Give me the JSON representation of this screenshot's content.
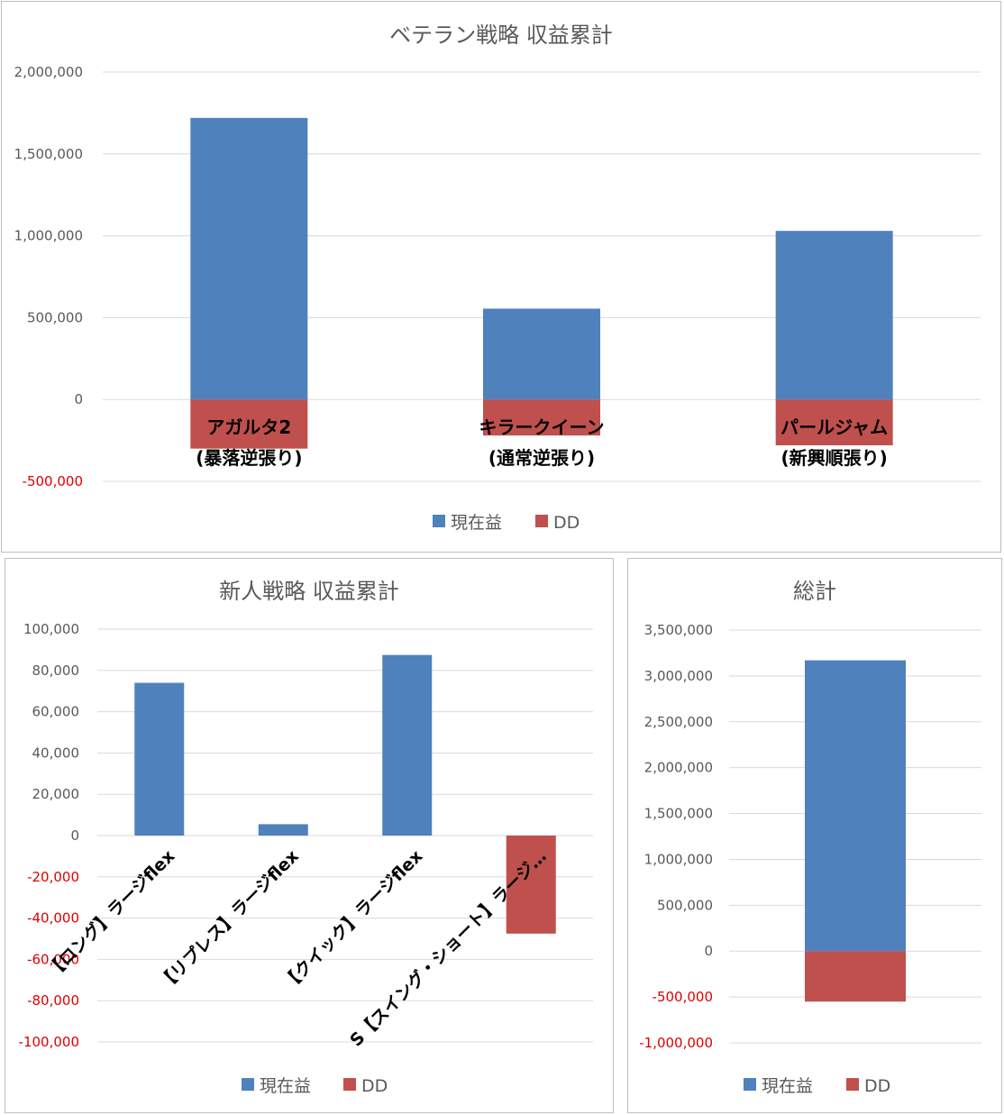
{
  "colors": {
    "current": "#4f81bd",
    "dd": "#c0504d",
    "grid": "#d9d9d9",
    "negative_tick": "#e00000"
  },
  "legend": {
    "current": "現在益",
    "dd": "DD"
  },
  "chart_data": [
    {
      "type": "bar",
      "title": "ベテラン戦略 収益累計",
      "categories": [
        [
          "アガルタ2",
          "(暴落逆張り)"
        ],
        [
          "キラークイーン",
          "(通常逆張り)"
        ],
        [
          "パールジャム",
          "(新興順張り)"
        ]
      ],
      "series": [
        {
          "name": "現在益",
          "values": [
            1720000,
            555000,
            1030000
          ]
        },
        {
          "name": "DD",
          "values": [
            -300000,
            -220000,
            -280000
          ]
        }
      ],
      "yticks": [
        "2,000,000",
        "1,500,000",
        "1,000,000",
        "500,000",
        "0",
        "-500,000"
      ],
      "ylim": [
        -500000,
        2000000
      ],
      "grid": true,
      "legend_position": "bottom"
    },
    {
      "type": "bar",
      "title": "新人戦略 収益累計",
      "categories": [
        "【ロング】ラージflex",
        "【リプレス】ラージflex",
        "【クイック】ラージflex",
        "S【スイング・ショート】ラージ…"
      ],
      "series": [
        {
          "name": "現在益",
          "values": [
            74000,
            5500,
            87500,
            0
          ]
        },
        {
          "name": "DD",
          "values": [
            0,
            0,
            0,
            -47500
          ]
        }
      ],
      "yticks": [
        "100,000",
        "80,000",
        "60,000",
        "40,000",
        "20,000",
        "0",
        "-20,000",
        "-40,000",
        "-60,000",
        "-80,000",
        "-100,000"
      ],
      "ylim": [
        -100000,
        100000
      ],
      "grid": true,
      "legend_position": "bottom"
    },
    {
      "type": "bar",
      "title": "総計",
      "categories": [
        ""
      ],
      "series": [
        {
          "name": "現在益",
          "values": [
            3170000
          ]
        },
        {
          "name": "DD",
          "values": [
            -550000
          ]
        }
      ],
      "yticks": [
        "3,500,000",
        "3,000,000",
        "2,500,000",
        "2,000,000",
        "1,500,000",
        "1,000,000",
        "500,000",
        "0",
        "-500,000",
        "-1,000,000"
      ],
      "ylim": [
        -1000000,
        3500000
      ],
      "grid": true,
      "legend_position": "bottom"
    }
  ]
}
